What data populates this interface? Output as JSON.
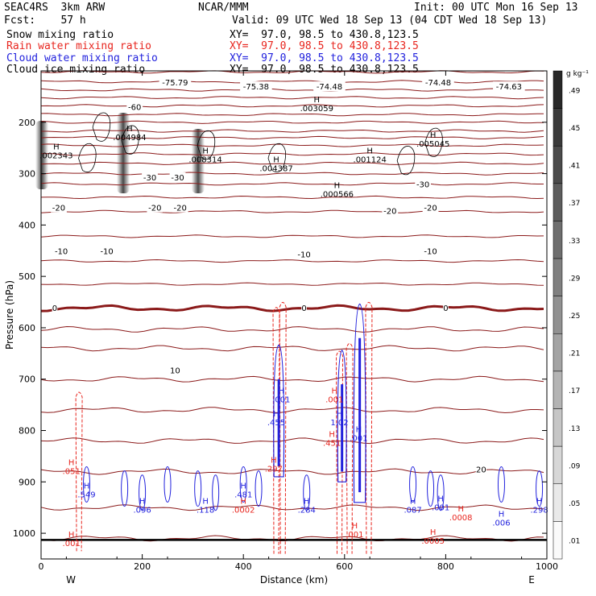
{
  "header": {
    "model": "SEAC4RS  3km ARW",
    "center": "NCAR/MMM",
    "init": "Init: 00 UTC Mon 16 Sep 13",
    "fcst": "Fcst:    57 h",
    "valid": "Valid: 09 UTC Wed 18 Sep 13 (04 CDT Wed 18 Sep 13)"
  },
  "fields": [
    {
      "label": "Snow mixing ratio",
      "xy": "XY=  97.0, 98.5 to 430.8,123.5",
      "color": "#000000"
    },
    {
      "label": "Rain water mixing ratio",
      "xy": "XY=  97.0, 98.5 to 430.8,123.5",
      "color": "#e8261f"
    },
    {
      "label": "Cloud water mixing ratio",
      "xy": "XY=  97.0, 98.5 to 430.8,123.5",
      "color": "#2222dd"
    },
    {
      "label": "Cloud ice mixing ratio",
      "xy": "XY=  97.0, 98.5 to 430.8,123.5",
      "color": "#000000"
    }
  ],
  "chart_data": {
    "type": "cross-section",
    "xlabel": "Distance (km)",
    "ylabel": "Pressure (hPa)",
    "xlim": [
      0,
      1000
    ],
    "ylim": [
      1050,
      100
    ],
    "x_ticks": [
      "0",
      "200",
      "400",
      "600",
      "800",
      "1000"
    ],
    "y_ticks": [
      "200",
      "300",
      "400",
      "500",
      "600",
      "700",
      "800",
      "900",
      "1000"
    ],
    "end_labels": {
      "left": "W",
      "right": "E"
    },
    "colorbar": {
      "unit": "g kg⁻¹",
      "labels": [
        ".49",
        ".45",
        ".41",
        ".37",
        ".33",
        ".29",
        ".25",
        ".21",
        ".17",
        ".13",
        ".09",
        ".05",
        ".01"
      ]
    },
    "temperature_labels": [
      {
        "text": "-75.79",
        "x": 265,
        "p": 122
      },
      {
        "text": "-75.38",
        "x": 425,
        "p": 130
      },
      {
        "text": "-74.48",
        "x": 570,
        "p": 130
      },
      {
        "text": "-74.48",
        "x": 785,
        "p": 122
      },
      {
        "text": "-74.63",
        "x": 925,
        "p": 130
      },
      {
        "text": "-60",
        "x": 185,
        "p": 170
      },
      {
        "text": "-30",
        "x": 215,
        "p": 307
      },
      {
        "text": "-30",
        "x": 270,
        "p": 307
      },
      {
        "text": "-30",
        "x": 755,
        "p": 320
      },
      {
        "text": "-20",
        "x": 35,
        "p": 366
      },
      {
        "text": "-20",
        "x": 225,
        "p": 366
      },
      {
        "text": "-20",
        "x": 275,
        "p": 366
      },
      {
        "text": "-20",
        "x": 690,
        "p": 372
      },
      {
        "text": "-20",
        "x": 770,
        "p": 366
      },
      {
        "text": "-10",
        "x": 40,
        "p": 450
      },
      {
        "text": "-10",
        "x": 130,
        "p": 450
      },
      {
        "text": "-10",
        "x": 520,
        "p": 457
      },
      {
        "text": "-10",
        "x": 770,
        "p": 450
      },
      {
        "text": "0",
        "x": 27,
        "p": 561
      },
      {
        "text": "0",
        "x": 520,
        "p": 561
      },
      {
        "text": "0",
        "x": 800,
        "p": 561
      },
      {
        "text": "10",
        "x": 265,
        "p": 682
      },
      {
        "text": "20",
        "x": 870,
        "p": 875
      }
    ],
    "snow_maxima": [
      {
        "value": ".002343",
        "x": 30,
        "p": 270
      },
      {
        "value": ".004984",
        "x": 175,
        "p": 235
      },
      {
        "value": ".008314",
        "x": 325,
        "p": 278
      },
      {
        "value": ".004387",
        "x": 465,
        "p": 295
      },
      {
        "value": ".003059",
        "x": 545,
        "p": 178
      },
      {
        "value": ".001124",
        "x": 650,
        "p": 278
      },
      {
        "value": ".000566",
        "x": 585,
        "p": 345
      },
      {
        "value": ".005045",
        "x": 775,
        "p": 247
      }
    ],
    "rain_maxima": [
      {
        "value": ".051",
        "x": 60,
        "p": 885
      },
      {
        "value": ".001",
        "x": 60,
        "p": 1025
      },
      {
        "value": ".0002",
        "x": 400,
        "p": 960
      },
      {
        "value": ".297",
        "x": 460,
        "p": 880
      },
      {
        "value": ".001",
        "x": 580,
        "p": 745
      },
      {
        "value": ".451",
        "x": 575,
        "p": 830
      },
      {
        "value": ".001",
        "x": 620,
        "p": 1008
      },
      {
        "value": ".0008",
        "x": 830,
        "p": 975
      },
      {
        "value": ".0005",
        "x": 775,
        "p": 1020
      }
    ],
    "cloud_water_maxima": [
      {
        "value": ".549",
        "x": 90,
        "p": 930
      },
      {
        "value": ".096",
        "x": 200,
        "p": 960
      },
      {
        "value": ".118",
        "x": 325,
        "p": 960
      },
      {
        "value": ".481",
        "x": 400,
        "p": 930
      },
      {
        "value": ".001",
        "x": 475,
        "p": 745
      },
      {
        "value": ".455",
        "x": 465,
        "p": 790
      },
      {
        "value": ".284",
        "x": 525,
        "p": 960
      },
      {
        "value": "1.02",
        "x": 590,
        "p": 790
      },
      {
        "value": ".001",
        "x": 628,
        "p": 820
      },
      {
        "value": ".087",
        "x": 735,
        "p": 960
      },
      {
        "value": ".001",
        "x": 790,
        "p": 955
      },
      {
        "value": ".006",
        "x": 910,
        "p": 985
      },
      {
        "value": ".298",
        "x": 985,
        "p": 960
      }
    ]
  }
}
